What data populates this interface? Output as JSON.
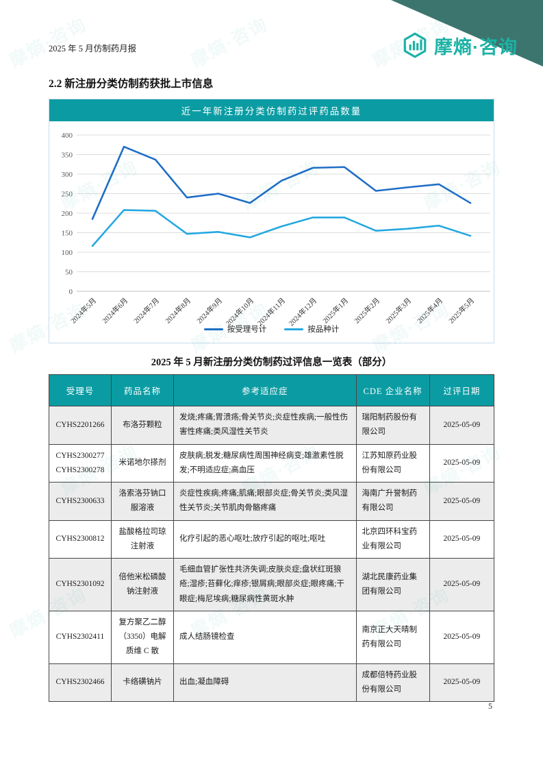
{
  "header": {
    "doc_title": "2025 年 5 月仿制药月报",
    "logo_text": "摩熵·咨询"
  },
  "section": {
    "title": "2.2 新注册分类仿制药获批上市信息"
  },
  "chart_data": {
    "type": "line",
    "title": "近一年新注册分类仿制药过评药品数量",
    "categories": [
      "2024年5月",
      "2024年6月",
      "2024年7月",
      "2024年8月",
      "2024年9月",
      "2024年10月",
      "2024年11月",
      "2024年12月",
      "2025年1月",
      "2025年2月",
      "2025年3月",
      "2025年4月",
      "2025年5月"
    ],
    "series": [
      {
        "name": "按受理号计",
        "color": "#1f6dc6",
        "values": [
          185,
          370,
          337,
          240,
          250,
          226,
          283,
          316,
          318,
          257,
          266,
          274,
          226
        ]
      },
      {
        "name": "按品种计",
        "color": "#25a8e0",
        "values": [
          116,
          208,
          206,
          147,
          152,
          138,
          166,
          189,
          189,
          155,
          160,
          168,
          142
        ]
      }
    ],
    "ylim": [
      0,
      400
    ],
    "ytick_step": 50,
    "grid": true,
    "legend_position": "bottom"
  },
  "table": {
    "title": "2025 年 5 月新注册分类仿制药过评信息一览表（部分）",
    "headers": [
      "受理号",
      "药品名称",
      "参考适应症",
      "CDE 企业名称",
      "过评日期"
    ],
    "rows": [
      {
        "acceptance_no": "CYHS2201266",
        "drug_name": "布洛芬颗粒",
        "indications": "发烧;疼痛;胃溃疡;骨关节炎;炎症性疾病;一般性伤害性疼痛;类风湿性关节炎",
        "company": "瑞阳制药股份有限公司",
        "date": "2025-05-09"
      },
      {
        "acceptance_no": "CYHS2300277\nCYHS2300278",
        "drug_name": "米诺地尔搽剂",
        "indications": "皮肤病;脱发;糖尿病性周围神经病变;雄激素性脱发;不明适应症;高血压",
        "company": "江苏知原药业股份有限公司",
        "date": "2025-05-09"
      },
      {
        "acceptance_no": "CYHS2300633",
        "drug_name": "洛索洛芬钠口服溶液",
        "indications": "炎症性疾病;疼痛;肌痛;眼部炎症;骨关节炎;类风湿性关节炎;关节肌肉骨骼疼痛",
        "company": "海南广升誉制药有限公司",
        "date": "2025-05-09"
      },
      {
        "acceptance_no": "CYHS2300812",
        "drug_name": "盐酸格拉司琼注射液",
        "indications": "化疗引起的恶心呕吐;放疗引起的呕吐;呕吐",
        "company": "北京四环科宝药业有限公司",
        "date": "2025-05-09"
      },
      {
        "acceptance_no": "CYHS2301092",
        "drug_name": "倍他米松磷酸钠注射液",
        "indications": "毛细血管扩张性共济失调;皮肤炎症;盘状红斑狼疮;湿疹;苔藓化;痒疹;银屑病;眼部炎症;眼疼痛;干眼症;梅尼埃病;糖尿病性黄斑水肿",
        "company": "湖北民康药业集团有限公司",
        "date": "2025-05-09"
      },
      {
        "acceptance_no": "CYHS2302411",
        "drug_name": "复方聚乙二醇（3350）电解质维 C 散",
        "indications": "成人结肠镜检查",
        "company": "南京正大天晴制药有限公司",
        "date": "2025-05-09"
      },
      {
        "acceptance_no": "CYHS2302466",
        "drug_name": "卡络磺钠片",
        "indications": "出血;凝血障碍",
        "company": "成都倍特药业股份有限公司",
        "date": "2025-05-09"
      }
    ]
  },
  "footer": {
    "page_number": "5"
  },
  "watermark": {
    "text": "摩熵·咨询"
  },
  "colors": {
    "teal_banner": "#0b9ca3",
    "corner_triangle": "#3c756e",
    "logo_teal": "#1cb2a5",
    "stripe_gray": "#ececec",
    "line_dark_blue": "#1f6dc6",
    "line_light_blue": "#25a8e0"
  }
}
